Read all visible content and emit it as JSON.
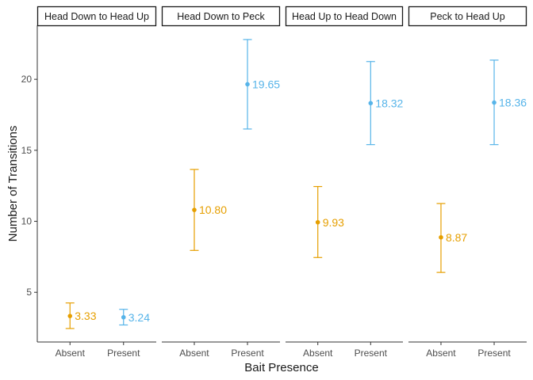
{
  "chart_data": {
    "type": "errorbar-faceted",
    "xlabel": "Bait Presence",
    "ylabel": "Number of Transitions",
    "ylim": [
      1.5,
      23.8
    ],
    "yticks": [
      5,
      10,
      15,
      20
    ],
    "categories": [
      "Absent",
      "Present"
    ],
    "colors": {
      "Absent": "#E69F00",
      "Present": "#56B4E9"
    },
    "facets": [
      {
        "title": "Head Down to Head Up",
        "points": [
          {
            "category": "Absent",
            "mean": 3.33,
            "lower": 2.45,
            "upper": 4.25,
            "label": "3.33"
          },
          {
            "category": "Present",
            "mean": 3.24,
            "lower": 2.7,
            "upper": 3.8,
            "label": "3.24"
          }
        ]
      },
      {
        "title": "Head Down to Peck",
        "points": [
          {
            "category": "Absent",
            "mean": 10.8,
            "lower": 7.95,
            "upper": 13.65,
            "label": "10.80"
          },
          {
            "category": "Present",
            "mean": 19.65,
            "lower": 16.5,
            "upper": 22.8,
            "label": "19.65"
          }
        ]
      },
      {
        "title": "Head Up to Head Down",
        "points": [
          {
            "category": "Absent",
            "mean": 9.93,
            "lower": 7.45,
            "upper": 12.45,
            "label": "9.93"
          },
          {
            "category": "Present",
            "mean": 18.32,
            "lower": 15.4,
            "upper": 21.25,
            "label": "18.32"
          }
        ]
      },
      {
        "title": "Peck to Head Up",
        "points": [
          {
            "category": "Absent",
            "mean": 8.87,
            "lower": 6.4,
            "upper": 11.25,
            "label": "8.87"
          },
          {
            "category": "Present",
            "mean": 18.36,
            "lower": 15.4,
            "upper": 21.35,
            "label": "18.36"
          }
        ]
      }
    ]
  }
}
